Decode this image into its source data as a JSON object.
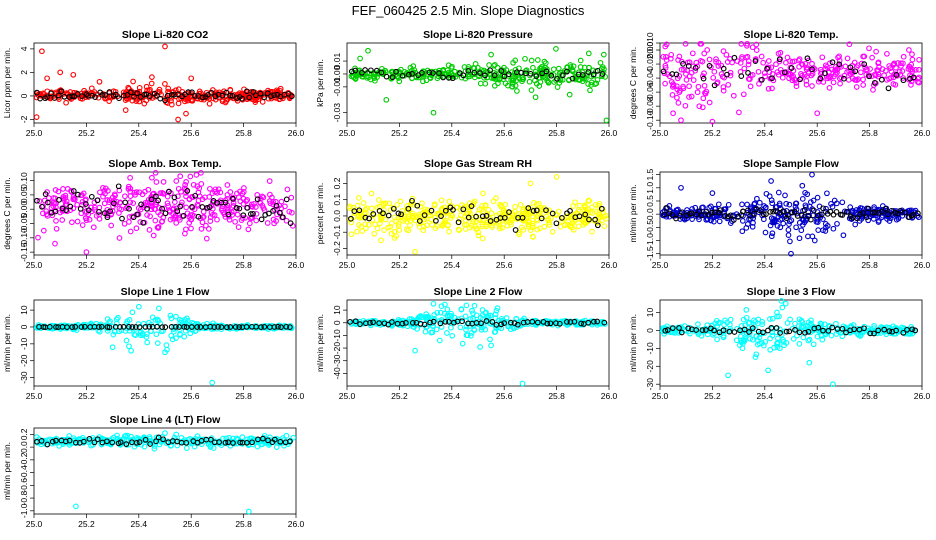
{
  "figure_title": "FEF_060425  2.5 Min. Slope Diagnostics",
  "chart_data": [
    {
      "type": "scatter",
      "title": "Slope Li-820 CO2",
      "ylabel": "Licor ppm per min.",
      "xlim": [
        25.0,
        26.0
      ],
      "ylim": [
        -2.3,
        4.5
      ],
      "x_ticks": [
        25.0,
        25.2,
        25.4,
        25.6,
        25.8,
        26.0
      ],
      "x_tick_labels": [
        "25.0",
        "25.2",
        "25.4",
        "25.6",
        "25.8",
        "26.0"
      ],
      "y_ticks": [
        -2,
        0,
        2,
        4
      ],
      "y_tick_labels": [
        "-2",
        "0",
        "2",
        "4"
      ],
      "color": "#ff0000",
      "overlay_color": "#000000",
      "n_points": 330,
      "n_overlay": 75,
      "center": 0.05,
      "spread": 0.22,
      "burst_center": 25.5,
      "burst_width": 0.15,
      "burst_mult": 2.5,
      "outliers": [
        [
          25.03,
          3.8
        ],
        [
          25.5,
          4.2
        ],
        [
          25.05,
          1.5
        ],
        [
          25.1,
          2.0
        ],
        [
          25.15,
          1.8
        ],
        [
          25.35,
          -1.2
        ],
        [
          25.55,
          -2.0
        ],
        [
          25.6,
          1.5
        ],
        [
          25.01,
          -1.8
        ],
        [
          25.25,
          1.2
        ],
        [
          25.45,
          1.6
        ],
        [
          25.58,
          -1.5
        ]
      ]
    },
    {
      "type": "scatter",
      "title": "Slope Li-820 Pressure",
      "ylabel": "kPa per min.",
      "xlim": [
        25.0,
        26.0
      ],
      "ylim": [
        -0.038,
        0.024
      ],
      "x_ticks": [
        25.0,
        25.2,
        25.4,
        25.6,
        25.8,
        26.0
      ],
      "x_tick_labels": [
        "25.0",
        "25.2",
        "25.4",
        "25.6",
        "25.8",
        "26.0"
      ],
      "y_ticks": [
        -0.03,
        -0.01,
        0.0,
        0.01
      ],
      "y_tick_labels": [
        "-0.03",
        "-0.01",
        "0.00",
        "0.01"
      ],
      "color": "#00cc00",
      "overlay_color": "#000000",
      "n_points": 330,
      "n_overlay": 50,
      "center": 0.0,
      "spread": 0.0025,
      "burst_center": 25.75,
      "burst_width": 0.25,
      "burst_mult": 2.5,
      "outliers": [
        [
          25.33,
          -0.03
        ],
        [
          25.99,
          -0.036
        ],
        [
          25.98,
          0.015
        ],
        [
          25.08,
          0.018
        ],
        [
          25.55,
          0.015
        ],
        [
          25.05,
          0.012
        ],
        [
          25.15,
          -0.02
        ],
        [
          25.72,
          -0.018
        ],
        [
          25.85,
          -0.016
        ]
      ]
    },
    {
      "type": "scatter",
      "title": "Slope Li-820 Temp.",
      "ylabel": "degrees C per min.",
      "xlim": [
        25.0,
        26.0
      ],
      "ylim": [
        -0.104,
        0.01
      ],
      "x_ticks": [
        25.0,
        25.2,
        25.4,
        25.6,
        25.8,
        26.0
      ],
      "x_tick_labels": [
        "25.0",
        "25.2",
        "25.4",
        "25.6",
        "25.8",
        "26.0"
      ],
      "y_ticks": [
        -0.1,
        -0.08,
        -0.06,
        -0.04,
        -0.02,
        0.0,
        0.01
      ],
      "y_tick_labels": [
        "-0.10",
        "-0.08",
        "-0.06",
        "-0.04",
        "-0.02",
        "0.00",
        "0.010"
      ],
      "color": "#ff00ff",
      "overlay_color": "#000000",
      "n_points": 330,
      "n_overlay": 40,
      "center": -0.03,
      "spread": 0.012,
      "burst_center": 25.15,
      "burst_width": 0.2,
      "burst_mult": 2.0,
      "outliers": [
        [
          25.02,
          0.005
        ],
        [
          25.05,
          -0.09
        ],
        [
          25.2,
          -0.102
        ],
        [
          25.18,
          0.0
        ],
        [
          25.6,
          -0.09
        ],
        [
          25.95,
          0.0
        ],
        [
          25.15,
          -0.08
        ],
        [
          25.08,
          -0.1
        ]
      ]
    },
    {
      "type": "scatter",
      "title": "Slope Amb. Box Temp.",
      "ylabel": "degrees C per min.",
      "xlim": [
        25.0,
        26.0
      ],
      "ylim": [
        -0.16,
        0.13
      ],
      "x_ticks": [
        25.0,
        25.2,
        25.4,
        25.6,
        25.8,
        26.0
      ],
      "x_tick_labels": [
        "25.0",
        "25.2",
        "25.4",
        "25.6",
        "25.8",
        "26.0"
      ],
      "y_ticks": [
        -0.15,
        -0.1,
        -0.05,
        0.0,
        0.05,
        0.1
      ],
      "y_tick_labels": [
        "-0.15",
        "-0.10",
        "-0.05",
        "0.00",
        "0.05",
        "0.10"
      ],
      "color": "#ff00ff",
      "overlay_color": "#000000",
      "n_points": 380,
      "n_overlay": 70,
      "center": 0.01,
      "spread": 0.035,
      "burst_center": 25.5,
      "burst_width": 0.4,
      "burst_mult": 1.3,
      "outliers": [
        [
          25.2,
          -0.15
        ],
        [
          25.62,
          0.12
        ],
        [
          25.08,
          -0.12
        ],
        [
          25.45,
          0.11
        ]
      ]
    },
    {
      "type": "scatter",
      "title": "Slope Gas Stream RH",
      "ylabel": "percent per min.",
      "xlim": [
        25.0,
        26.0
      ],
      "ylim": [
        -0.24,
        0.27
      ],
      "x_ticks": [
        25.0,
        25.2,
        25.4,
        25.6,
        25.8,
        26.0
      ],
      "x_tick_labels": [
        "25.0",
        "25.2",
        "25.4",
        "25.6",
        "25.8",
        "26.0"
      ],
      "y_ticks": [
        -0.2,
        -0.1,
        0.0,
        0.1,
        0.2
      ],
      "y_tick_labels": [
        "-0.2",
        "-0.1",
        "0.0",
        "0.1",
        "0.2"
      ],
      "color": "#ffff00",
      "overlay_color": "#000000",
      "n_points": 420,
      "n_overlay": 55,
      "center": 0.0,
      "spread": 0.045,
      "burst_center": 25.5,
      "burst_width": 0.5,
      "burst_mult": 1.2,
      "outliers": [
        [
          25.8,
          0.24
        ],
        [
          25.26,
          -0.22
        ],
        [
          25.13,
          -0.15
        ],
        [
          25.7,
          0.2
        ]
      ]
    },
    {
      "type": "scatter",
      "title": "Slope Sample Flow",
      "ylabel": "ml/min per min.",
      "xlim": [
        25.0,
        26.0
      ],
      "ylim": [
        -1.55,
        1.6
      ],
      "x_ticks": [
        25.0,
        25.2,
        25.4,
        25.6,
        25.8,
        26.0
      ],
      "x_tick_labels": [
        "25.0",
        "25.2",
        "25.4",
        "25.6",
        "25.8",
        "26.0"
      ],
      "y_ticks": [
        -1.5,
        -1.0,
        -0.5,
        0.0,
        0.5,
        1.0,
        1.5
      ],
      "y_tick_labels": [
        "-1.5",
        "-1.0",
        "-0.5",
        "0.0",
        "0.5",
        "1.0",
        "1.5"
      ],
      "color": "#0000cc",
      "overlay_color": "#000000",
      "n_points": 360,
      "n_overlay": 80,
      "center": 0.0,
      "spread": 0.12,
      "burst_center": 25.5,
      "burst_width": 0.2,
      "burst_mult": 4.0,
      "outliers": [
        [
          25.58,
          1.5
        ],
        [
          25.5,
          -1.5
        ],
        [
          25.08,
          1.0
        ],
        [
          25.2,
          0.8
        ],
        [
          25.7,
          -0.8
        ]
      ]
    },
    {
      "type": "scatter",
      "title": "Slope Line 1 Flow",
      "ylabel": "ml/min per min.",
      "xlim": [
        25.0,
        26.0
      ],
      "ylim": [
        -35,
        16
      ],
      "x_ticks": [
        25.0,
        25.2,
        25.4,
        25.6,
        25.8,
        26.0
      ],
      "x_tick_labels": [
        "25.0",
        "25.2",
        "25.4",
        "25.6",
        "25.8",
        "26.0"
      ],
      "y_ticks": [
        -30,
        -20,
        -10,
        0,
        10
      ],
      "y_tick_labels": [
        "-30",
        "-20",
        "-10",
        "0",
        "10"
      ],
      "color": "#00ffff",
      "overlay_color": "#000000",
      "n_points": 330,
      "n_overlay": 60,
      "center": 0.0,
      "spread": 0.5,
      "burst_center": 25.45,
      "burst_width": 0.15,
      "burst_mult": 12,
      "overlay_flat": true,
      "outliers": [
        [
          25.68,
          -33
        ],
        [
          25.4,
          12
        ],
        [
          25.5,
          -15
        ],
        [
          25.3,
          -12
        ]
      ]
    },
    {
      "type": "scatter",
      "title": "Slope Line 2 Flow",
      "ylabel": "ml/min per min.",
      "xlim": [
        25.0,
        26.0
      ],
      "ylim": [
        -50,
        18
      ],
      "x_ticks": [
        25.0,
        25.2,
        25.4,
        25.6,
        25.8,
        26.0
      ],
      "x_tick_labels": [
        "25.0",
        "25.2",
        "25.4",
        "25.6",
        "25.8",
        "26.0"
      ],
      "y_ticks": [
        -40,
        -30,
        -20,
        -10,
        0,
        10
      ],
      "y_tick_labels": [
        "-40",
        "-30",
        "-20",
        "-10",
        "0",
        "10"
      ],
      "color": "#00ffff",
      "overlay_color": "#000000",
      "n_points": 330,
      "n_overlay": 55,
      "center": 0.0,
      "spread": 1.0,
      "burst_center": 25.45,
      "burst_width": 0.15,
      "burst_mult": 8,
      "outliers": [
        [
          25.67,
          -48
        ],
        [
          25.26,
          -22
        ],
        [
          25.33,
          15
        ],
        [
          25.55,
          -18
        ]
      ]
    },
    {
      "type": "scatter",
      "title": "Slope Line 3 Flow",
      "ylabel": "ml/min per min.",
      "xlim": [
        25.0,
        26.0
      ],
      "ylim": [
        -31,
        17
      ],
      "x_ticks": [
        25.0,
        25.2,
        25.4,
        25.6,
        25.8,
        26.0
      ],
      "x_tick_labels": [
        "25.0",
        "25.2",
        "25.4",
        "25.6",
        "25.8",
        "26.0"
      ],
      "y_ticks": [
        -30,
        -20,
        -10,
        0,
        10
      ],
      "y_tick_labels": [
        "-30",
        "-20",
        "-10",
        "0",
        "10"
      ],
      "color": "#00ffff",
      "overlay_color": "#000000",
      "n_points": 330,
      "n_overlay": 55,
      "center": 0.0,
      "spread": 1.2,
      "burst_center": 25.42,
      "burst_width": 0.18,
      "burst_mult": 6,
      "outliers": [
        [
          25.66,
          -30
        ],
        [
          25.26,
          -25
        ],
        [
          25.48,
          15
        ],
        [
          25.57,
          -18
        ]
      ]
    },
    {
      "type": "scatter",
      "title": "Slope Line 4 (LT) Flow",
      "ylabel": "ml/min per min.",
      "xlim": [
        25.0,
        26.0
      ],
      "ylim": [
        -1.05,
        0.3
      ],
      "x_ticks": [
        25.0,
        25.2,
        25.4,
        25.6,
        25.8,
        26.0
      ],
      "x_tick_labels": [
        "25.0",
        "25.2",
        "25.4",
        "25.6",
        "25.8",
        "26.0"
      ],
      "y_ticks": [
        -1.0,
        -0.8,
        -0.6,
        -0.4,
        -0.2,
        0.0,
        0.2
      ],
      "y_tick_labels": [
        "-1.0",
        "-0.8",
        "-0.6",
        "-0.4",
        "-0.2",
        "0.0",
        "0.2"
      ],
      "color": "#00ffff",
      "overlay_color": "#000000",
      "n_points": 300,
      "n_overlay": 55,
      "center": 0.09,
      "spread": 0.03,
      "burst_center": 25.5,
      "burst_width": 0.3,
      "burst_mult": 1.5,
      "outliers": [
        [
          25.16,
          -0.93
        ],
        [
          25.82,
          -1.01
        ],
        [
          25.5,
          0.22
        ],
        [
          25.35,
          0.18
        ]
      ]
    }
  ]
}
